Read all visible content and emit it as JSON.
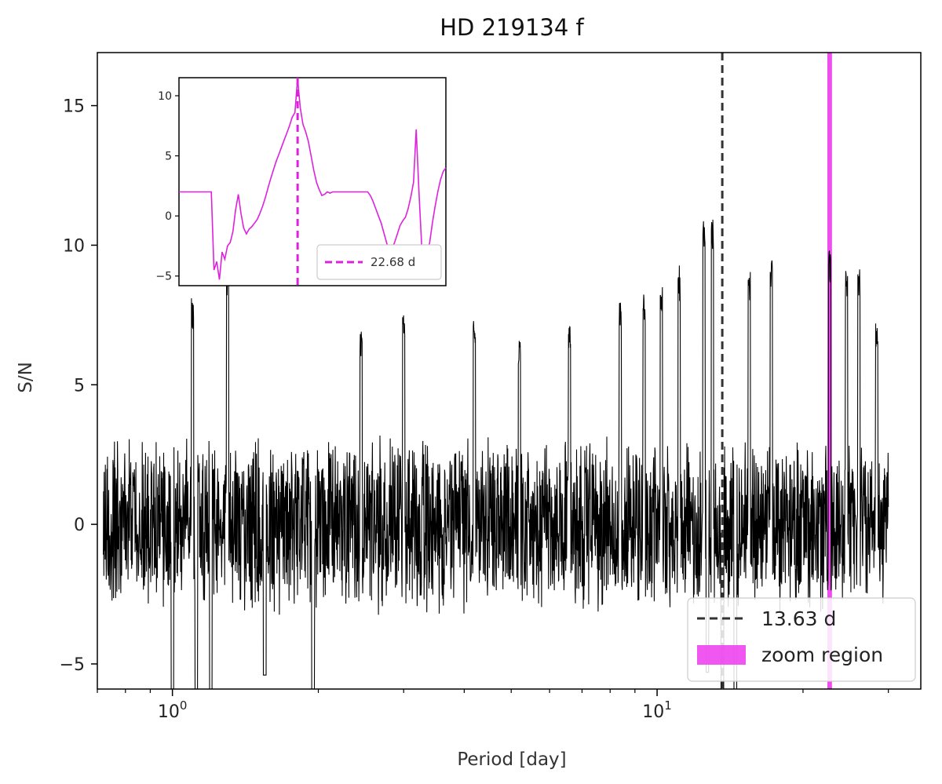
{
  "chart_data": {
    "type": "line",
    "title": "HD 219134 f",
    "xlabel": "Period [day]",
    "ylabel": "S/N",
    "x_scale": "log",
    "xlim": [
      0.7,
      35
    ],
    "ylim": [
      -5.9,
      16.9
    ],
    "x_major_ticks": [
      {
        "value": 1,
        "base": "10",
        "exp": "0"
      },
      {
        "value": 10,
        "base": "10",
        "exp": "1"
      }
    ],
    "x_minor_ticks": [
      0.7,
      0.8,
      0.9,
      2,
      3,
      4,
      5,
      6,
      7,
      8,
      9,
      20,
      30
    ],
    "y_ticks": [
      {
        "value": -5,
        "label": "−5"
      },
      {
        "value": 0,
        "label": "0"
      },
      {
        "value": 5,
        "label": "5"
      },
      {
        "value": 10,
        "label": "10"
      },
      {
        "value": 15,
        "label": "15"
      }
    ],
    "series": [
      {
        "name": "",
        "color": "#000000",
        "x_range": [
          0.72,
          30.0
        ],
        "noise_amplitude": 3.3,
        "peaks": [
          {
            "x": 1.0,
            "y": 9.4
          },
          {
            "x": 1.1,
            "y": 8.2
          },
          {
            "x": 1.3,
            "y": 9.6
          },
          {
            "x": 1.55,
            "y": 9.3
          },
          {
            "x": 1.95,
            "y": 9.0
          },
          {
            "x": 2.45,
            "y": 7.0
          },
          {
            "x": 3.0,
            "y": 7.6
          },
          {
            "x": 4.2,
            "y": 7.4
          },
          {
            "x": 5.2,
            "y": 6.6
          },
          {
            "x": 6.6,
            "y": 7.4
          },
          {
            "x": 8.4,
            "y": 8.1
          },
          {
            "x": 9.4,
            "y": 8.3
          },
          {
            "x": 10.2,
            "y": 8.5
          },
          {
            "x": 11.1,
            "y": 9.4
          },
          {
            "x": 12.5,
            "y": 11.2
          },
          {
            "x": 13.0,
            "y": 11.1
          },
          {
            "x": 13.63,
            "y": 12.3
          },
          {
            "x": 15.5,
            "y": 9.4
          },
          {
            "x": 17.2,
            "y": 9.7
          },
          {
            "x": 22.7,
            "y": 10.1
          },
          {
            "x": 24.6,
            "y": 9.2
          },
          {
            "x": 26.1,
            "y": 9.5
          },
          {
            "x": 28.4,
            "y": 7.3
          }
        ],
        "troughs": [
          {
            "x": 1.0,
            "y": -5.9
          },
          {
            "x": 1.12,
            "y": -5.9
          },
          {
            "x": 1.2,
            "y": -5.9
          },
          {
            "x": 1.95,
            "y": -5.9
          },
          {
            "x": 1.55,
            "y": -5.4
          },
          {
            "x": 13.63,
            "y": -5.9
          },
          {
            "x": 14.5,
            "y": -5.9
          },
          {
            "x": 12.7,
            "y": -5.3
          }
        ]
      }
    ],
    "vlines": [
      {
        "x": 13.63,
        "style": "dashed",
        "color": "#333333",
        "label": "13.63 d"
      }
    ],
    "zoom_region": {
      "x": [
        22.45,
        22.95
      ],
      "color": "#ee44ee",
      "label": "zoom region"
    },
    "legend": {
      "position": "lower-right"
    },
    "inset": {
      "x_points": 100,
      "ylim": [
        -5.8,
        11.5
      ],
      "y_ticks": [
        {
          "value": -5,
          "label": "−5"
        },
        {
          "value": 0,
          "label": "0"
        },
        {
          "value": 5,
          "label": "5"
        },
        {
          "value": 10,
          "label": "10"
        }
      ],
      "line_color": "#dd22dd",
      "y": [
        2.0,
        2.0,
        2.0,
        2.0,
        2.0,
        2.0,
        2.0,
        2.0,
        2.0,
        2.0,
        2.0,
        2.0,
        2.0,
        -4.5,
        -3.8,
        -5.3,
        -3.0,
        -3.6,
        -2.5,
        -2.2,
        -1.3,
        0.5,
        1.8,
        0.2,
        -1.0,
        -1.5,
        -1.1,
        -0.9,
        -0.6,
        -0.3,
        0.2,
        0.8,
        1.5,
        2.3,
        3.1,
        3.8,
        4.5,
        5.1,
        5.7,
        6.3,
        6.9,
        7.5,
        8.2,
        8.6,
        11.4,
        9.0,
        7.6,
        7.0,
        6.2,
        5.0,
        3.8,
        2.8,
        2.2,
        1.7,
        1.8,
        2.0,
        1.9,
        2.0,
        2.0,
        2.0,
        2.0,
        2.0,
        2.0,
        2.0,
        2.0,
        2.0,
        2.0,
        2.0,
        2.0,
        2.0,
        2.0,
        1.7,
        1.2,
        0.6,
        0.0,
        -0.6,
        -1.4,
        -2.2,
        -3.0,
        -2.7,
        -2.2,
        -1.5,
        -0.8,
        -0.4,
        -0.1,
        0.6,
        1.6,
        2.8,
        7.2,
        2.0,
        -2.4,
        -5.3,
        -3.1,
        -2.2,
        -0.6,
        0.8,
        2.0,
        3.0,
        3.7,
        4.0
      ],
      "vline_index": 44,
      "legend_label": "22.68 d"
    }
  }
}
